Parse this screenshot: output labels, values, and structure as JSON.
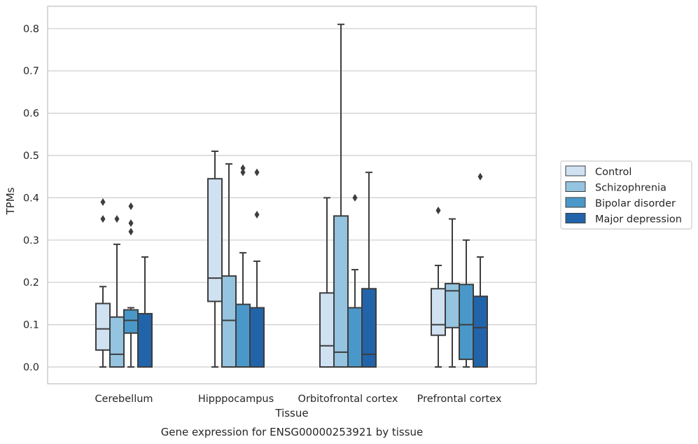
{
  "chart_data": {
    "type": "box",
    "xlabel": "Tissue",
    "ylabel": "TPMs",
    "caption": "Gene expression for ENSG00000253921 by tissue",
    "ylim": [
      -0.04,
      0.855
    ],
    "yticks": [
      "0.0",
      "0.1",
      "0.2",
      "0.3",
      "0.4",
      "0.5",
      "0.6",
      "0.7",
      "0.8"
    ],
    "grid": "horizontal",
    "legend_placement": "right",
    "categories": [
      "Cerebellum",
      "Hipppocampus",
      "Orbitofrontal cortex",
      "Prefrontal cortex"
    ],
    "series": [
      {
        "name": "Control",
        "color": "#d0e1f2",
        "boxes": [
          {
            "q1": 0.04,
            "median": 0.09,
            "q3": 0.15,
            "whisker_low": 0.0,
            "whisker_high": 0.19,
            "outliers": [
              0.35,
              0.39
            ]
          },
          {
            "q1": 0.155,
            "median": 0.21,
            "q3": 0.445,
            "whisker_low": 0.0,
            "whisker_high": 0.51,
            "outliers": []
          },
          {
            "q1": 0.0,
            "median": 0.05,
            "q3": 0.175,
            "whisker_low": 0.0,
            "whisker_high": 0.4,
            "outliers": []
          },
          {
            "q1": 0.075,
            "median": 0.1,
            "q3": 0.185,
            "whisker_low": 0.0,
            "whisker_high": 0.24,
            "outliers": [
              0.37
            ]
          }
        ]
      },
      {
        "name": "Schizophrenia",
        "color": "#94c4df",
        "boxes": [
          {
            "q1": 0.0,
            "median": 0.03,
            "q3": 0.118,
            "whisker_low": 0.0,
            "whisker_high": 0.29,
            "outliers": [
              0.35
            ]
          },
          {
            "q1": 0.0,
            "median": 0.11,
            "q3": 0.215,
            "whisker_low": 0.0,
            "whisker_high": 0.48,
            "outliers": []
          },
          {
            "q1": 0.0,
            "median": 0.035,
            "q3": 0.357,
            "whisker_low": 0.0,
            "whisker_high": 0.81,
            "outliers": []
          },
          {
            "q1": 0.093,
            "median": 0.18,
            "q3": 0.197,
            "whisker_low": 0.0,
            "whisker_high": 0.35,
            "outliers": []
          }
        ]
      },
      {
        "name": "Bipolar disorder",
        "color": "#4a98c9",
        "boxes": [
          {
            "q1": 0.08,
            "median": 0.11,
            "q3": 0.135,
            "whisker_low": 0.0,
            "whisker_high": 0.14,
            "outliers": [
              0.32,
              0.34,
              0.38
            ]
          },
          {
            "q1": 0.0,
            "median": 0.0,
            "q3": 0.148,
            "whisker_low": 0.0,
            "whisker_high": 0.27,
            "outliers": [
              0.46,
              0.47
            ]
          },
          {
            "q1": 0.0,
            "median": 0.0,
            "q3": 0.14,
            "whisker_low": 0.0,
            "whisker_high": 0.23,
            "outliers": [
              0.4
            ]
          },
          {
            "q1": 0.018,
            "median": 0.1,
            "q3": 0.195,
            "whisker_low": 0.0,
            "whisker_high": 0.3,
            "outliers": []
          }
        ]
      },
      {
        "name": "Major depression",
        "color": "#2264aa",
        "boxes": [
          {
            "q1": 0.0,
            "median": 0.0,
            "q3": 0.126,
            "whisker_low": 0.0,
            "whisker_high": 0.26,
            "outliers": []
          },
          {
            "q1": 0.0,
            "median": 0.0,
            "q3": 0.14,
            "whisker_low": 0.0,
            "whisker_high": 0.25,
            "outliers": [
              0.36,
              0.46
            ]
          },
          {
            "q1": 0.0,
            "median": 0.03,
            "q3": 0.185,
            "whisker_low": 0.0,
            "whisker_high": 0.46,
            "outliers": []
          },
          {
            "q1": 0.0,
            "median": 0.093,
            "q3": 0.167,
            "whisker_low": 0.0,
            "whisker_high": 0.26,
            "outliers": [
              0.45
            ]
          }
        ]
      }
    ],
    "colors": {
      "line": "#3d3d3d",
      "grid": "#cccccc",
      "frame": "#cccccc",
      "text": "#262626"
    }
  }
}
